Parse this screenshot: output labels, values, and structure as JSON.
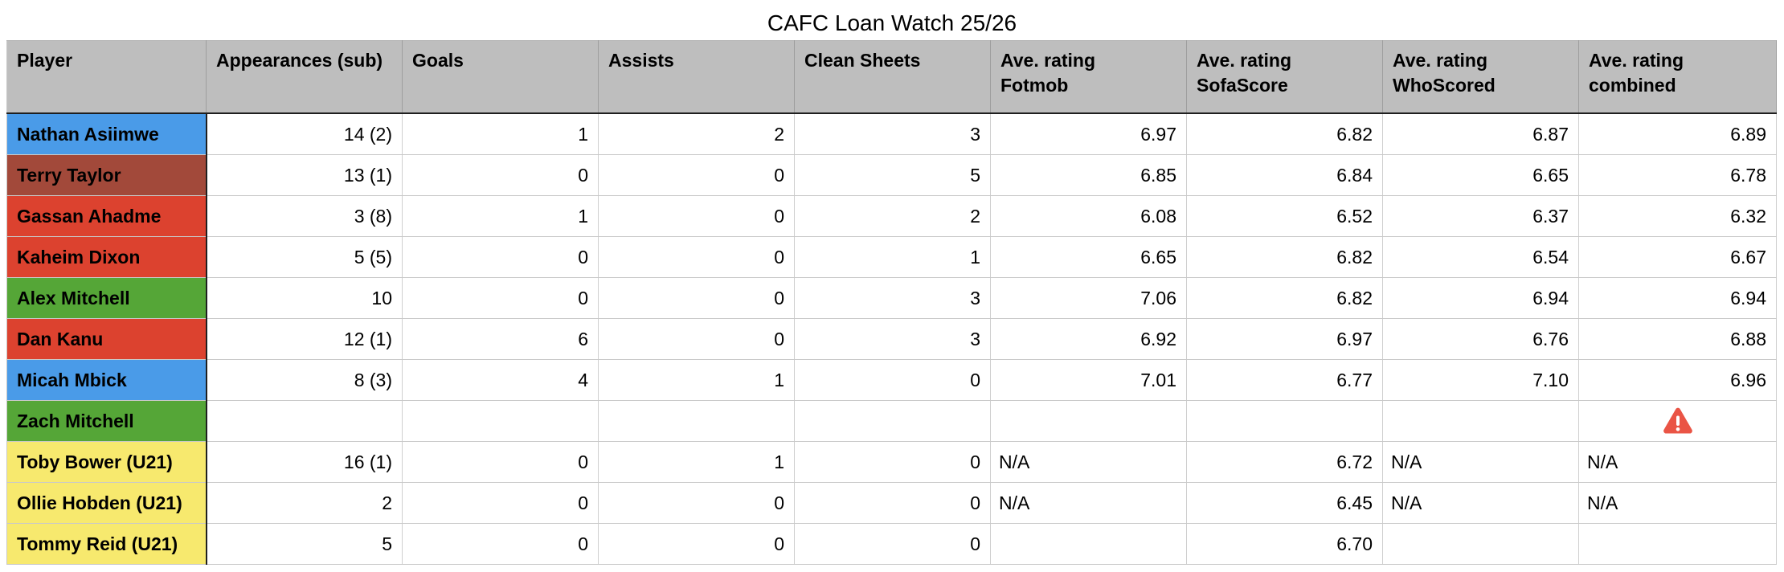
{
  "title": "CAFC Loan Watch 25/26",
  "colors": {
    "header_bg": "#BEBEBE",
    "blue": "#4A9BE8",
    "red": "#DC422F",
    "dark_red": "#A2493A",
    "green": "#55A637",
    "yellow": "#F7E96E",
    "warning": "#EA5445"
  },
  "table": {
    "columns": [
      "Player",
      "Appearances (sub)",
      "Goals",
      "Assists",
      "Clean Sheets",
      "Ave. rating\nFotmob",
      "Ave. rating\nSofaScore",
      "Ave. rating\nWhoScored",
      "Ave. rating\ncombined"
    ],
    "rows": [
      {
        "player": "Nathan Asiimwe",
        "color": "blue",
        "cells": [
          "14 (2)",
          "1",
          "2",
          "3",
          "6.97",
          "6.82",
          "6.87",
          "6.89"
        ]
      },
      {
        "player": "Terry Taylor",
        "color": "dark_red",
        "cells": [
          "13 (1)",
          "0",
          "0",
          "5",
          "6.85",
          "6.84",
          "6.65",
          "6.78"
        ]
      },
      {
        "player": "Gassan Ahadme",
        "color": "red",
        "cells": [
          "3 (8)",
          "1",
          "0",
          "2",
          "6.08",
          "6.52",
          "6.37",
          "6.32"
        ]
      },
      {
        "player": "Kaheim Dixon",
        "color": "red",
        "cells": [
          "5 (5)",
          "0",
          "0",
          "1",
          "6.65",
          "6.82",
          "6.54",
          "6.67"
        ]
      },
      {
        "player": "Alex Mitchell",
        "color": "green",
        "cells": [
          "10",
          "0",
          "0",
          "3",
          "7.06",
          "6.82",
          "6.94",
          "6.94"
        ]
      },
      {
        "player": "Dan Kanu",
        "color": "red",
        "cells": [
          "12 (1)",
          "6",
          "0",
          "3",
          "6.92",
          "6.97",
          "6.76",
          "6.88"
        ]
      },
      {
        "player": "Micah Mbick",
        "color": "blue",
        "cells": [
          "8 (3)",
          "4",
          "1",
          "0",
          "7.01",
          "6.77",
          "7.10",
          "6.96"
        ]
      },
      {
        "player": "Zach Mitchell",
        "color": "green",
        "cells": [
          "",
          "",
          "",
          "",
          "",
          "",
          "",
          ""
        ],
        "warning_cell": 7
      },
      {
        "player": "Toby Bower (U21)",
        "color": "yellow",
        "cells": [
          "16 (1)",
          "0",
          "1",
          "0",
          "N/A",
          "6.72",
          "N/A",
          "N/A"
        ]
      },
      {
        "player": "Ollie Hobden (U21)",
        "color": "yellow",
        "cells": [
          "2",
          "0",
          "0",
          "0",
          "N/A",
          "6.45",
          "N/A",
          "N/A"
        ]
      },
      {
        "player": "Tommy Reid (U21)",
        "color": "yellow",
        "cells": [
          "5",
          "0",
          "0",
          "0",
          "",
          "6.70",
          "",
          ""
        ]
      }
    ]
  },
  "icons": {
    "warning": "warning-triangle-icon"
  }
}
